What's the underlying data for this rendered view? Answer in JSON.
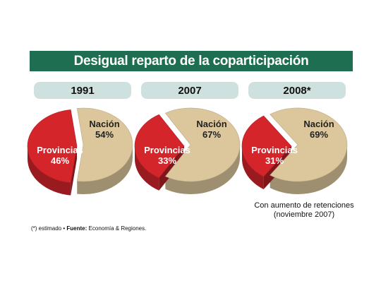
{
  "title": "Desigual reparto de la coparticipación",
  "chart_data": [
    {
      "type": "pie",
      "year": "1991",
      "slices": [
        {
          "name": "Nación",
          "value": 54,
          "label": "54%"
        },
        {
          "name": "Provincias",
          "value": 46,
          "label": "46%"
        }
      ]
    },
    {
      "type": "pie",
      "year": "2007",
      "slices": [
        {
          "name": "Nación",
          "value": 67,
          "label": "67%"
        },
        {
          "name": "Provincias",
          "value": 33,
          "label": "33%"
        }
      ]
    },
    {
      "type": "pie",
      "year": "2008*",
      "slices": [
        {
          "name": "Nación",
          "value": 69,
          "label": "69%"
        },
        {
          "name": "Provincias",
          "value": 31,
          "label": "31%"
        }
      ]
    }
  ],
  "colors": {
    "nacion": "#dcc69c",
    "provincias": "#d4252b",
    "header": "#1e6f52",
    "pill": "#cfe1df"
  },
  "note": {
    "line1": "Con aumento de retenciones",
    "line2": "(noviembre 2007)"
  },
  "footer": {
    "asterisk": "(*) estimado",
    "bullet": "•",
    "source_label": "Fuente:",
    "source": "Economía & Regiones."
  }
}
